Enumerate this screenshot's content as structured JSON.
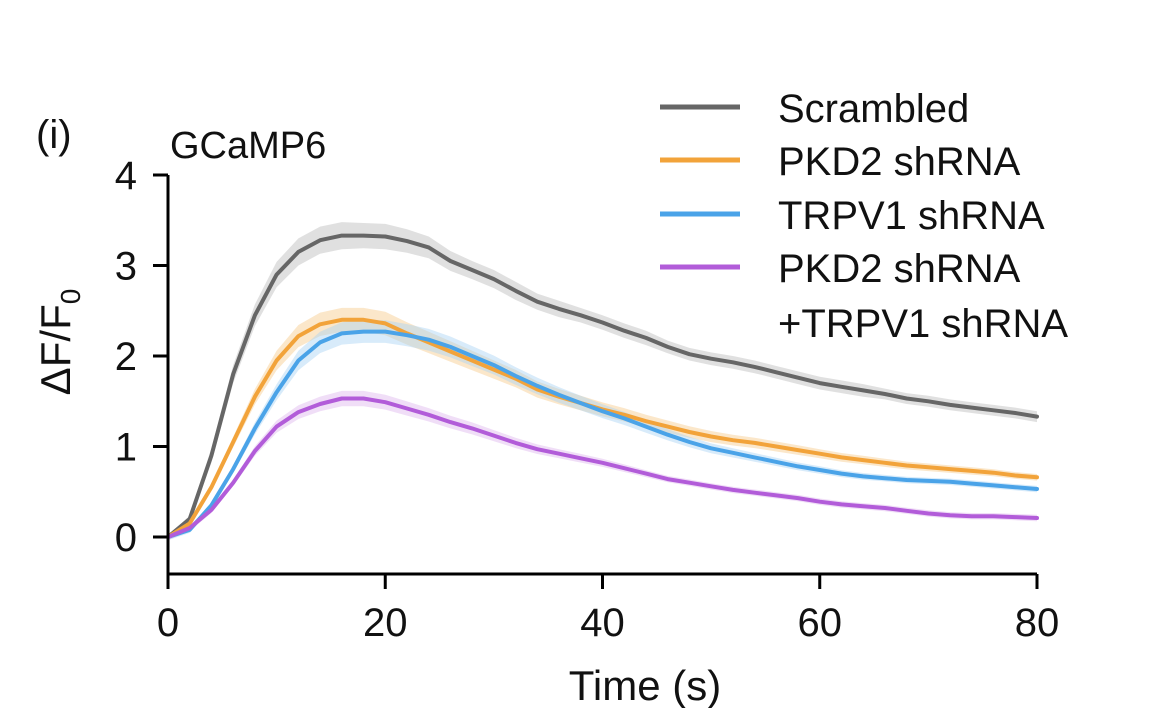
{
  "panel_label": "(i)",
  "chart_data": {
    "type": "line",
    "title": "GCaMP6",
    "xlabel": "Time (s)",
    "ylabel_main": "ΔF/F",
    "ylabel_sub": "0",
    "xlim": [
      0,
      80
    ],
    "ylim": [
      0,
      4
    ],
    "xticks": [
      "0",
      "20",
      "40",
      "60",
      "80"
    ],
    "yticks": [
      "0",
      "1",
      "2",
      "3",
      "4"
    ],
    "grid": false,
    "legend_position": "top-right",
    "x": [
      0,
      2,
      4,
      6,
      8,
      10,
      12,
      14,
      16,
      18,
      20,
      22,
      24,
      26,
      28,
      30,
      32,
      34,
      36,
      38,
      40,
      42,
      44,
      46,
      48,
      50,
      52,
      54,
      56,
      58,
      60,
      62,
      64,
      66,
      68,
      70,
      72,
      74,
      76,
      78,
      80
    ],
    "series": [
      {
        "name": "Scrambled",
        "color": "#666666",
        "band_color": "#bbbbbb",
        "values": [
          0,
          0.2,
          0.9,
          1.8,
          2.45,
          2.9,
          3.15,
          3.28,
          3.33,
          3.33,
          3.32,
          3.27,
          3.2,
          3.05,
          2.95,
          2.85,
          2.72,
          2.6,
          2.52,
          2.45,
          2.37,
          2.28,
          2.2,
          2.1,
          2.02,
          1.97,
          1.93,
          1.88,
          1.82,
          1.76,
          1.7,
          1.66,
          1.62,
          1.58,
          1.53,
          1.5,
          1.46,
          1.43,
          1.4,
          1.37,
          1.33
        ],
        "sem": [
          0,
          0.04,
          0.08,
          0.1,
          0.12,
          0.14,
          0.15,
          0.15,
          0.15,
          0.14,
          0.14,
          0.13,
          0.12,
          0.11,
          0.1,
          0.1,
          0.1,
          0.09,
          0.09,
          0.08,
          0.08,
          0.08,
          0.08,
          0.07,
          0.07,
          0.07,
          0.07,
          0.07,
          0.07,
          0.07,
          0.07,
          0.07,
          0.07,
          0.06,
          0.06,
          0.06,
          0.06,
          0.06,
          0.06,
          0.06,
          0.06
        ]
      },
      {
        "name": "PKD2 shRNA",
        "color": "#f2a33a",
        "band_color": "#f7c98a",
        "values": [
          0,
          0.15,
          0.55,
          1.05,
          1.55,
          1.95,
          2.22,
          2.35,
          2.4,
          2.4,
          2.36,
          2.25,
          2.15,
          2.05,
          1.95,
          1.85,
          1.75,
          1.63,
          1.55,
          1.48,
          1.41,
          1.35,
          1.28,
          1.22,
          1.16,
          1.11,
          1.07,
          1.04,
          1.0,
          0.96,
          0.92,
          0.88,
          0.85,
          0.82,
          0.79,
          0.77,
          0.75,
          0.73,
          0.71,
          0.68,
          0.66
        ]
      },
      {
        "name": "TRPV1 shRNA",
        "color": "#4aa3e8",
        "band_color": "#a9d3f5",
        "values": [
          0,
          0.08,
          0.35,
          0.75,
          1.2,
          1.6,
          1.95,
          2.15,
          2.25,
          2.27,
          2.27,
          2.23,
          2.18,
          2.1,
          2.0,
          1.9,
          1.78,
          1.67,
          1.57,
          1.48,
          1.39,
          1.31,
          1.22,
          1.13,
          1.05,
          0.98,
          0.93,
          0.88,
          0.83,
          0.78,
          0.74,
          0.7,
          0.67,
          0.65,
          0.63,
          0.62,
          0.61,
          0.59,
          0.57,
          0.55,
          0.53
        ]
      },
      {
        "name": "PKD2 shRNA",
        "name_line2": "+TRPV1 shRNA",
        "color": "#b25cd9",
        "band_color": "#ddb6ee",
        "values": [
          0,
          0.1,
          0.3,
          0.6,
          0.95,
          1.22,
          1.38,
          1.47,
          1.53,
          1.53,
          1.49,
          1.42,
          1.35,
          1.27,
          1.2,
          1.12,
          1.04,
          0.97,
          0.92,
          0.87,
          0.82,
          0.76,
          0.7,
          0.64,
          0.6,
          0.56,
          0.52,
          0.49,
          0.46,
          0.43,
          0.39,
          0.36,
          0.34,
          0.32,
          0.29,
          0.26,
          0.24,
          0.23,
          0.23,
          0.22,
          0.21
        ]
      }
    ]
  }
}
